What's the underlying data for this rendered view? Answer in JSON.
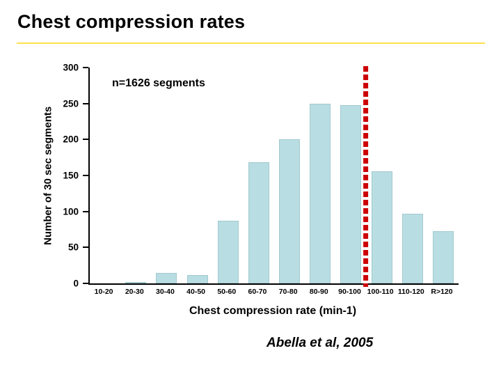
{
  "slide": {
    "title": "Chest compression rates",
    "attribution": "Abella et al, 2005",
    "accent_rule_color": "#ffe14d"
  },
  "chart_data": {
    "type": "bar",
    "title": "",
    "annotation": "n=1626 segments",
    "xlabel": "Chest compression rate (min-1)",
    "ylabel": "Number of 30 sec segments",
    "categories": [
      "10-20",
      "20-30",
      "30-40",
      "40-50",
      "50-60",
      "60-70",
      "70-80",
      "80-90",
      "90-100",
      "100-110",
      "110-120",
      "R>120"
    ],
    "values": [
      0,
      2,
      15,
      12,
      87,
      168,
      200,
      250,
      248,
      156,
      97,
      73
    ],
    "ylim": [
      0,
      300
    ],
    "yticks": [
      0,
      50,
      100,
      150,
      200,
      250,
      300
    ],
    "bar_color": "#b8dde2",
    "grid": false,
    "legend": false,
    "reference_line": {
      "value": 100,
      "boundary_index": 9,
      "color": "#cc0000",
      "style": "dashed"
    }
  }
}
